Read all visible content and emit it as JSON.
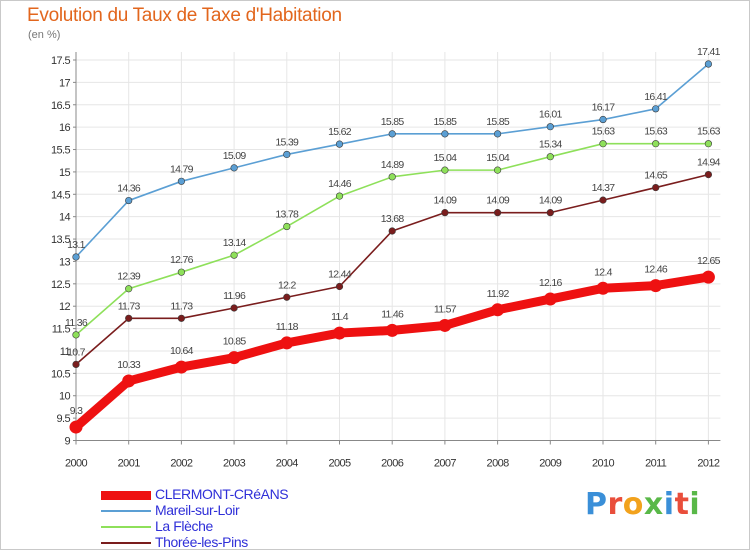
{
  "header": {
    "title": "Evolution du Taux de Taxe d'Habitation",
    "unit": "(en %)"
  },
  "brand": {
    "text": "Proxiti",
    "letter_colors": [
      "#3a8fd8",
      "#e94e3b",
      "#f2a21d",
      "#59b848",
      "#3a8fd8",
      "#e94e3b",
      "#59b848"
    ]
  },
  "chart_data": {
    "type": "line",
    "title": "Evolution du Taux de Taxe d'Habitation",
    "ylabel": "(en %)",
    "xlabel": "",
    "categories": [
      "2000",
      "2001",
      "2002",
      "2003",
      "2004",
      "2005",
      "2006",
      "2007",
      "2008",
      "2009",
      "2010",
      "2011",
      "2012"
    ],
    "ylim": [
      9,
      17.5
    ],
    "yticks": [
      "9",
      "9.5",
      "10",
      "10.5",
      "11",
      "11.5",
      "12",
      "12.5",
      "13",
      "13.5",
      "14",
      "14.5",
      "15",
      "15.5",
      "16",
      "16.5",
      "17",
      "17.5"
    ],
    "grid": true,
    "legend_position": "bottom-left",
    "series": [
      {
        "name": "Thorée-les-Pins",
        "color": "#7a1d1d",
        "values": [
          10.7,
          11.73,
          11.73,
          11.96,
          12.2,
          12.44,
          13.68,
          14.09,
          14.09,
          14.09,
          14.37,
          14.65,
          14.94
        ],
        "labels": [
          "10.7",
          "11.73",
          "11.73",
          "11.96",
          "12.2",
          "12.44",
          "13.68",
          "14.09",
          "14.09",
          "14.09",
          "14.37",
          "14.65",
          "14.94"
        ]
      },
      {
        "name": "La Flèche",
        "color": "#8ee05a",
        "values": [
          11.36,
          12.39,
          12.76,
          13.14,
          13.78,
          14.46,
          14.89,
          15.04,
          15.04,
          15.34,
          15.63,
          15.63,
          15.63
        ],
        "labels": [
          "11.36",
          "12.39",
          "12.76",
          "13.14",
          "13.78",
          "14.46",
          "14.89",
          "15.04",
          "15.04",
          "15.34",
          "15.63",
          "15.63",
          "15.63"
        ]
      },
      {
        "name": "Mareil-sur-Loir",
        "color": "#5b9fd4",
        "values": [
          13.1,
          14.36,
          14.79,
          15.09,
          15.39,
          15.62,
          15.85,
          15.85,
          15.85,
          16.01,
          16.17,
          16.41,
          17.41
        ],
        "labels": [
          "13.1",
          "14.36",
          "14.79",
          "15.09",
          "15.39",
          "15.62",
          "15.85",
          "15.85",
          "15.85",
          "16.01",
          "16.17",
          "16.41",
          "17.41"
        ]
      },
      {
        "name": "CLERMONT-CRéANS",
        "color": "#ee1111",
        "values": [
          9.3,
          10.33,
          10.64,
          10.85,
          11.18,
          11.4,
          11.46,
          11.57,
          11.92,
          12.16,
          12.4,
          12.46,
          12.65
        ],
        "labels": [
          "9.3",
          "10.33",
          "10.64",
          "10.85",
          "11.18",
          "11.4",
          "11.46",
          "11.57",
          "11.92",
          "12.16",
          "12.4",
          "12.46",
          "12.65"
        ]
      }
    ],
    "legend": [
      "CLERMONT-CRéANS",
      "Mareil-sur-Loir",
      "La Flèche",
      "Thorée-les-Pins"
    ]
  }
}
